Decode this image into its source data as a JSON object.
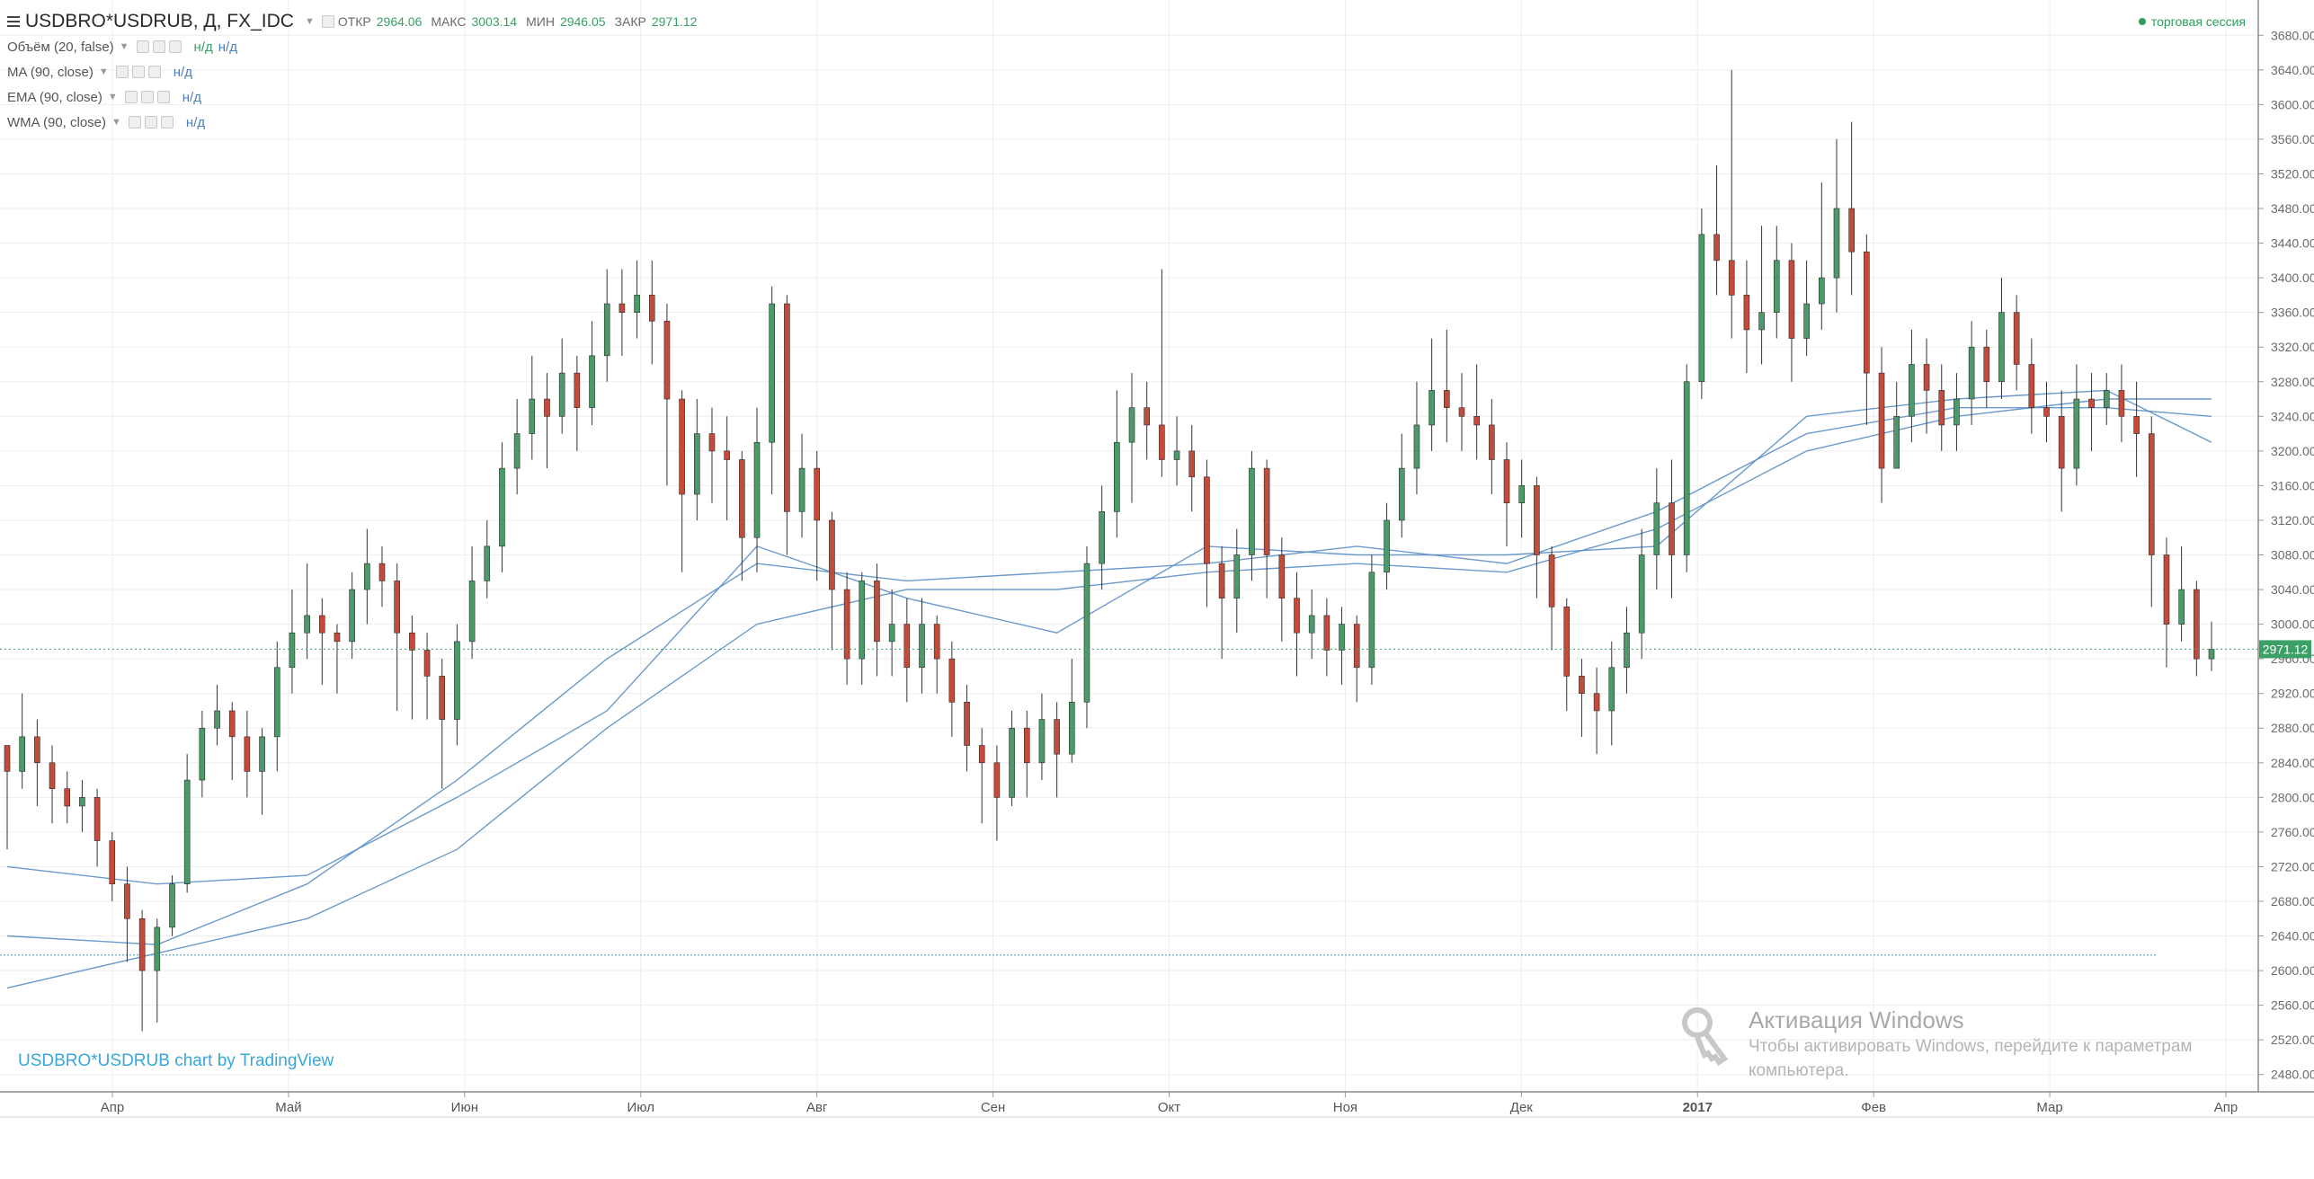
{
  "header": {
    "symbol": "USDBRO*USDRUB, Д, FX_IDC",
    "open_label": "ОТКР",
    "open_value": "2964.06",
    "high_label": "МАКС",
    "high_value": "3003.14",
    "low_label": "МИН",
    "low_value": "2946.05",
    "close_label": "ЗАКР",
    "close_value": "2971.12",
    "session_text": "торговая сессия"
  },
  "indicators": [
    {
      "name": "Объём (20, false)",
      "values": [
        "н/д",
        "н/д"
      ]
    },
    {
      "name": "MA (90, close)",
      "values": [
        "н/д"
      ]
    },
    {
      "name": "EMA (90, close)",
      "values": [
        "н/д"
      ]
    },
    {
      "name": "WMA (90, close)",
      "values": [
        "н/д"
      ]
    }
  ],
  "watermark": "USDBRO*USDRUB chart by TradingView",
  "windows_activation": {
    "title": "Активация Windows",
    "line1": "Чтобы активировать Windows, перейдите к параметрам",
    "line2": "компьютера."
  },
  "colors": {
    "up": "#4c9a6a",
    "down": "#c44a3a",
    "ma_line": "#5b8fc7",
    "grid": "#eeeeee",
    "last_price_bg": "#3aa066"
  },
  "chart_data": {
    "type": "candlestick",
    "ylim": [
      2460,
      3700
    ],
    "y_ticks": [
      "3680.00",
      "3640.00",
      "3600.00",
      "3560.00",
      "3520.00",
      "3480.00",
      "3440.00",
      "3400.00",
      "3360.00",
      "3320.00",
      "3280.00",
      "3240.00",
      "3200.00",
      "3160.00",
      "3120.00",
      "3080.00",
      "3040.00",
      "3000.00",
      "2960.00",
      "2920.00",
      "2880.00",
      "2840.00",
      "2800.00",
      "2760.00",
      "2720.00",
      "2680.00",
      "2640.00",
      "2600.00",
      "2560.00",
      "2520.00",
      "2480.00"
    ],
    "x_ticks": [
      "Апр",
      "Май",
      "Июн",
      "Июл",
      "Авг",
      "Сен",
      "Окт",
      "Ноя",
      "Дек",
      "2017",
      "Фев",
      "Мар",
      "Апр"
    ],
    "last_price": "2971.12",
    "series": [
      {
        "name": "USDBRO*USDRUB",
        "candles": [
          [
            2860,
            2830,
            2850,
            2740
          ],
          [
            2830,
            2870,
            2920,
            2810
          ],
          [
            2870,
            2840,
            2890,
            2790
          ],
          [
            2840,
            2810,
            2860,
            2770
          ],
          [
            2810,
            2790,
            2830,
            2770
          ],
          [
            2790,
            2800,
            2820,
            2760
          ],
          [
            2800,
            2750,
            2810,
            2720
          ],
          [
            2750,
            2700,
            2760,
            2680
          ],
          [
            2700,
            2660,
            2720,
            2610
          ],
          [
            2660,
            2600,
            2670,
            2530
          ],
          [
            2600,
            2650,
            2660,
            2540
          ],
          [
            2650,
            2700,
            2710,
            2640
          ],
          [
            2700,
            2820,
            2850,
            2690
          ],
          [
            2820,
            2880,
            2900,
            2800
          ],
          [
            2880,
            2900,
            2930,
            2860
          ],
          [
            2900,
            2870,
            2910,
            2820
          ],
          [
            2870,
            2830,
            2900,
            2800
          ],
          [
            2830,
            2870,
            2880,
            2780
          ],
          [
            2870,
            2950,
            2980,
            2830
          ],
          [
            2950,
            2990,
            3040,
            2920
          ],
          [
            2990,
            3010,
            3070,
            2960
          ],
          [
            3010,
            2990,
            3030,
            2930
          ],
          [
            2990,
            2980,
            3000,
            2920
          ],
          [
            2980,
            3040,
            3060,
            2960
          ],
          [
            3040,
            3070,
            3110,
            3000
          ],
          [
            3070,
            3050,
            3090,
            3020
          ],
          [
            3050,
            2990,
            3070,
            2900
          ],
          [
            2990,
            2970,
            3010,
            2890
          ],
          [
            2970,
            2940,
            2990,
            2890
          ],
          [
            2940,
            2890,
            2960,
            2810
          ],
          [
            2890,
            2980,
            3000,
            2860
          ],
          [
            2980,
            3050,
            3090,
            2960
          ],
          [
            3050,
            3090,
            3120,
            3030
          ],
          [
            3090,
            3180,
            3210,
            3060
          ],
          [
            3180,
            3220,
            3260,
            3150
          ],
          [
            3220,
            3260,
            3310,
            3190
          ],
          [
            3260,
            3240,
            3290,
            3180
          ],
          [
            3240,
            3290,
            3330,
            3220
          ],
          [
            3290,
            3250,
            3310,
            3200
          ],
          [
            3250,
            3310,
            3350,
            3230
          ],
          [
            3310,
            3370,
            3410,
            3280
          ],
          [
            3370,
            3360,
            3410,
            3310
          ],
          [
            3360,
            3380,
            3420,
            3330
          ],
          [
            3380,
            3350,
            3420,
            3300
          ],
          [
            3350,
            3260,
            3370,
            3160
          ],
          [
            3260,
            3150,
            3270,
            3060
          ],
          [
            3150,
            3220,
            3260,
            3120
          ],
          [
            3220,
            3200,
            3250,
            3140
          ],
          [
            3200,
            3190,
            3240,
            3120
          ],
          [
            3190,
            3100,
            3200,
            3050
          ],
          [
            3100,
            3210,
            3250,
            3060
          ],
          [
            3210,
            3370,
            3390,
            3150
          ],
          [
            3370,
            3130,
            3380,
            3080
          ],
          [
            3130,
            3180,
            3220,
            3100
          ],
          [
            3180,
            3120,
            3200,
            3050
          ],
          [
            3120,
            3040,
            3130,
            2970
          ],
          [
            3040,
            2960,
            3060,
            2930
          ],
          [
            2960,
            3050,
            3060,
            2930
          ],
          [
            3050,
            2980,
            3070,
            2940
          ],
          [
            2980,
            3000,
            3040,
            2940
          ],
          [
            3000,
            2950,
            3030,
            2910
          ],
          [
            2950,
            3000,
            3030,
            2920
          ],
          [
            3000,
            2960,
            3010,
            2920
          ],
          [
            2960,
            2910,
            2980,
            2870
          ],
          [
            2910,
            2860,
            2930,
            2830
          ],
          [
            2860,
            2840,
            2880,
            2770
          ],
          [
            2840,
            2800,
            2860,
            2750
          ],
          [
            2800,
            2880,
            2900,
            2790
          ],
          [
            2880,
            2840,
            2900,
            2800
          ],
          [
            2840,
            2890,
            2920,
            2820
          ],
          [
            2890,
            2850,
            2910,
            2800
          ],
          [
            2850,
            2910,
            2960,
            2840
          ],
          [
            2910,
            3070,
            3090,
            2880
          ],
          [
            3070,
            3130,
            3160,
            3040
          ],
          [
            3130,
            3210,
            3270,
            3100
          ],
          [
            3210,
            3250,
            3290,
            3140
          ],
          [
            3250,
            3230,
            3280,
            3190
          ],
          [
            3230,
            3190,
            3410,
            3170
          ],
          [
            3190,
            3200,
            3240,
            3160
          ],
          [
            3200,
            3170,
            3230,
            3130
          ],
          [
            3170,
            3070,
            3190,
            3020
          ],
          [
            3070,
            3030,
            3090,
            2960
          ],
          [
            3030,
            3080,
            3110,
            2990
          ],
          [
            3080,
            3180,
            3200,
            3050
          ],
          [
            3180,
            3080,
            3190,
            3030
          ],
          [
            3080,
            3030,
            3100,
            2980
          ],
          [
            3030,
            2990,
            3060,
            2940
          ],
          [
            2990,
            3010,
            3040,
            2960
          ],
          [
            3010,
            2970,
            3030,
            2940
          ],
          [
            2970,
            3000,
            3020,
            2930
          ],
          [
            3000,
            2950,
            3010,
            2910
          ],
          [
            2950,
            3060,
            3080,
            2930
          ],
          [
            3060,
            3120,
            3140,
            3040
          ],
          [
            3120,
            3180,
            3220,
            3100
          ],
          [
            3180,
            3230,
            3280,
            3150
          ],
          [
            3230,
            3270,
            3330,
            3200
          ],
          [
            3270,
            3250,
            3340,
            3210
          ],
          [
            3250,
            3240,
            3290,
            3200
          ],
          [
            3240,
            3230,
            3300,
            3190
          ],
          [
            3230,
            3190,
            3260,
            3150
          ],
          [
            3190,
            3140,
            3210,
            3090
          ],
          [
            3140,
            3160,
            3190,
            3100
          ],
          [
            3160,
            3080,
            3170,
            3030
          ],
          [
            3080,
            3020,
            3090,
            2970
          ],
          [
            3020,
            2940,
            3030,
            2900
          ],
          [
            2940,
            2920,
            2960,
            2870
          ],
          [
            2920,
            2900,
            2950,
            2850
          ],
          [
            2900,
            2950,
            2980,
            2860
          ],
          [
            2950,
            2990,
            3020,
            2920
          ],
          [
            2990,
            3080,
            3110,
            2960
          ],
          [
            3080,
            3140,
            3180,
            3040
          ],
          [
            3140,
            3080,
            3190,
            3030
          ],
          [
            3080,
            3280,
            3300,
            3060
          ],
          [
            3280,
            3450,
            3480,
            3260
          ],
          [
            3450,
            3420,
            3530,
            3380
          ],
          [
            3420,
            3380,
            3640,
            3330
          ],
          [
            3380,
            3340,
            3420,
            3290
          ],
          [
            3340,
            3360,
            3460,
            3300
          ],
          [
            3360,
            3420,
            3460,
            3330
          ],
          [
            3420,
            3330,
            3440,
            3280
          ],
          [
            3330,
            3370,
            3420,
            3310
          ],
          [
            3370,
            3400,
            3510,
            3340
          ],
          [
            3400,
            3480,
            3560,
            3360
          ],
          [
            3480,
            3430,
            3580,
            3380
          ],
          [
            3430,
            3290,
            3450,
            3230
          ],
          [
            3290,
            3180,
            3320,
            3140
          ],
          [
            3180,
            3240,
            3280,
            3190
          ],
          [
            3240,
            3300,
            3340,
            3210
          ],
          [
            3300,
            3270,
            3330,
            3220
          ],
          [
            3270,
            3230,
            3300,
            3200
          ],
          [
            3230,
            3260,
            3290,
            3200
          ],
          [
            3260,
            3320,
            3350,
            3230
          ],
          [
            3320,
            3280,
            3340,
            3250
          ],
          [
            3280,
            3360,
            3400,
            3260
          ],
          [
            3360,
            3300,
            3380,
            3270
          ],
          [
            3300,
            3250,
            3330,
            3220
          ],
          [
            3250,
            3240,
            3280,
            3210
          ],
          [
            3240,
            3180,
            3270,
            3130
          ],
          [
            3180,
            3260,
            3300,
            3160
          ],
          [
            3260,
            3250,
            3290,
            3200
          ],
          [
            3250,
            3270,
            3290,
            3230
          ],
          [
            3270,
            3240,
            3300,
            3210
          ],
          [
            3240,
            3220,
            3280,
            3170
          ],
          [
            3220,
            3080,
            3240,
            3020
          ],
          [
            3080,
            3000,
            3100,
            2950
          ],
          [
            3000,
            3040,
            3090,
            2980
          ],
          [
            3040,
            2960,
            3050,
            2940
          ],
          [
            2960,
            2971,
            3003,
            2946
          ]
        ]
      }
    ],
    "ma_lines": [
      {
        "name": "MA (90, close)",
        "points": [
          [
            0,
            2720
          ],
          [
            10,
            2700
          ],
          [
            20,
            2710
          ],
          [
            30,
            2800
          ],
          [
            40,
            2900
          ],
          [
            50,
            3090
          ],
          [
            60,
            3030
          ],
          [
            70,
            2990
          ],
          [
            80,
            3090
          ],
          [
            90,
            3080
          ],
          [
            100,
            3080
          ],
          [
            110,
            3090
          ],
          [
            120,
            3240
          ],
          [
            130,
            3260
          ],
          [
            140,
            3270
          ],
          [
            147,
            3210
          ]
        ]
      },
      {
        "name": "EMA (90, close)",
        "points": [
          [
            0,
            2640
          ],
          [
            10,
            2630
          ],
          [
            20,
            2700
          ],
          [
            30,
            2820
          ],
          [
            40,
            2960
          ],
          [
            50,
            3070
          ],
          [
            60,
            3050
          ],
          [
            70,
            3060
          ],
          [
            80,
            3070
          ],
          [
            90,
            3090
          ],
          [
            100,
            3070
          ],
          [
            110,
            3130
          ],
          [
            120,
            3220
          ],
          [
            130,
            3250
          ],
          [
            140,
            3250
          ],
          [
            147,
            3240
          ]
        ]
      },
      {
        "name": "WMA (90, close)",
        "points": [
          [
            0,
            2580
          ],
          [
            10,
            2620
          ],
          [
            20,
            2660
          ],
          [
            30,
            2740
          ],
          [
            40,
            2880
          ],
          [
            50,
            3000
          ],
          [
            60,
            3040
          ],
          [
            70,
            3040
          ],
          [
            80,
            3060
          ],
          [
            90,
            3070
          ],
          [
            100,
            3060
          ],
          [
            110,
            3110
          ],
          [
            120,
            3200
          ],
          [
            130,
            3240
          ],
          [
            140,
            3260
          ],
          [
            147,
            3260
          ]
        ]
      }
    ]
  }
}
